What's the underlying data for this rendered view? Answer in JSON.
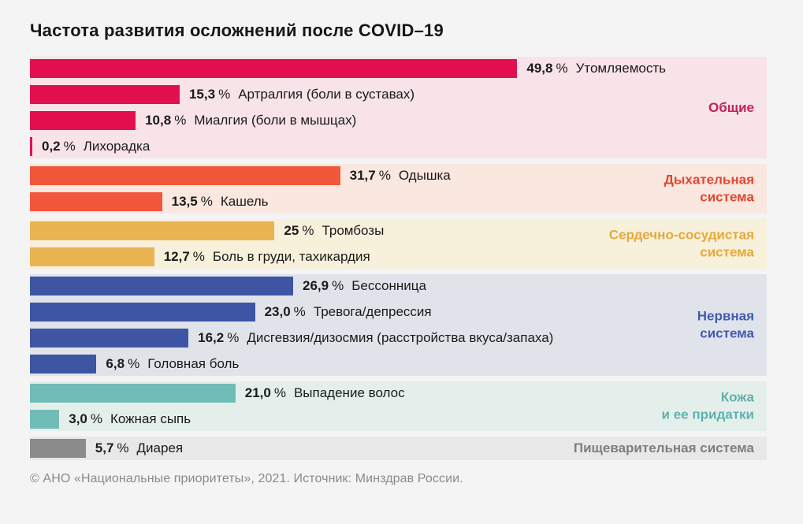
{
  "title": "Частота развития осложнений после COVID–19",
  "footer": "© АНО «Национальные приоритеты», 2021. Источник: Минздрав России.",
  "chart_data": {
    "type": "bar",
    "orientation": "horizontal",
    "value_unit": "%",
    "percent_sign": "%",
    "xlim": [
      0,
      75.3
    ],
    "grid": false,
    "legend_position": "group labels right-aligned inside panels",
    "groups": [
      {
        "label": "Общие",
        "bar_color": "#e2104e",
        "label_color": "#c32058",
        "panel_bg": "#f8e3e9",
        "items": [
          {
            "value": 49.8,
            "value_text": "49,8",
            "label": "Утомляемость"
          },
          {
            "value": 15.3,
            "value_text": "15,3",
            "label": "Артралгия (боли в суставах)"
          },
          {
            "value": 10.8,
            "value_text": "10,8",
            "label": "Миалгия (боли в мышцах)"
          },
          {
            "value": 0.2,
            "value_text": "0,2",
            "label": "Лихорадка"
          }
        ]
      },
      {
        "label": "Дыхательная\nсистема",
        "bar_color": "#f2573c",
        "label_color": "#e2472e",
        "panel_bg": "#f9e7e0",
        "items": [
          {
            "value": 31.7,
            "value_text": "31,7",
            "label": "Одышка"
          },
          {
            "value": 13.5,
            "value_text": "13,5",
            "label": "Кашель"
          }
        ]
      },
      {
        "label": "Сердечно-сосудистая\nсистема",
        "bar_color": "#e9b452",
        "label_color": "#e5a93c",
        "panel_bg": "#f7f0da",
        "items": [
          {
            "value": 25,
            "value_text": "25",
            "label": "Тромбозы"
          },
          {
            "value": 12.7,
            "value_text": "12,7",
            "label": "Боль в груди, тахикардия"
          }
        ]
      },
      {
        "label": "Нервная\nсистема",
        "bar_color": "#3d55a3",
        "label_color": "#3d5cae",
        "panel_bg": "#e0e4ea",
        "items": [
          {
            "value": 26.9,
            "value_text": "26,9",
            "label": "Бессонница"
          },
          {
            "value": 23.0,
            "value_text": "23,0",
            "label": "Тревога/депрессия"
          },
          {
            "value": 16.2,
            "value_text": "16,2",
            "label": "Дисгевзия/дизосмия (расстройства вкуса/запаха)"
          },
          {
            "value": 6.8,
            "value_text": "6,8",
            "label": "Головная боль"
          }
        ]
      },
      {
        "label": "Кожа\nи ее придатки",
        "bar_color": "#70bcb7",
        "label_color": "#5fb0aa",
        "panel_bg": "#e4efec",
        "items": [
          {
            "value": 21.0,
            "value_text": "21,0",
            "label": "Выпадение волос"
          },
          {
            "value": 3.0,
            "value_text": "3,0",
            "label": "Кожная сыпь"
          }
        ]
      },
      {
        "label": "Пищеварительная система",
        "bar_color": "#8b8b8b",
        "label_color": "#7e7e7e",
        "panel_bg": "#e8e8e8",
        "items": [
          {
            "value": 5.7,
            "value_text": "5,7",
            "label": "Диарея"
          }
        ]
      }
    ]
  }
}
